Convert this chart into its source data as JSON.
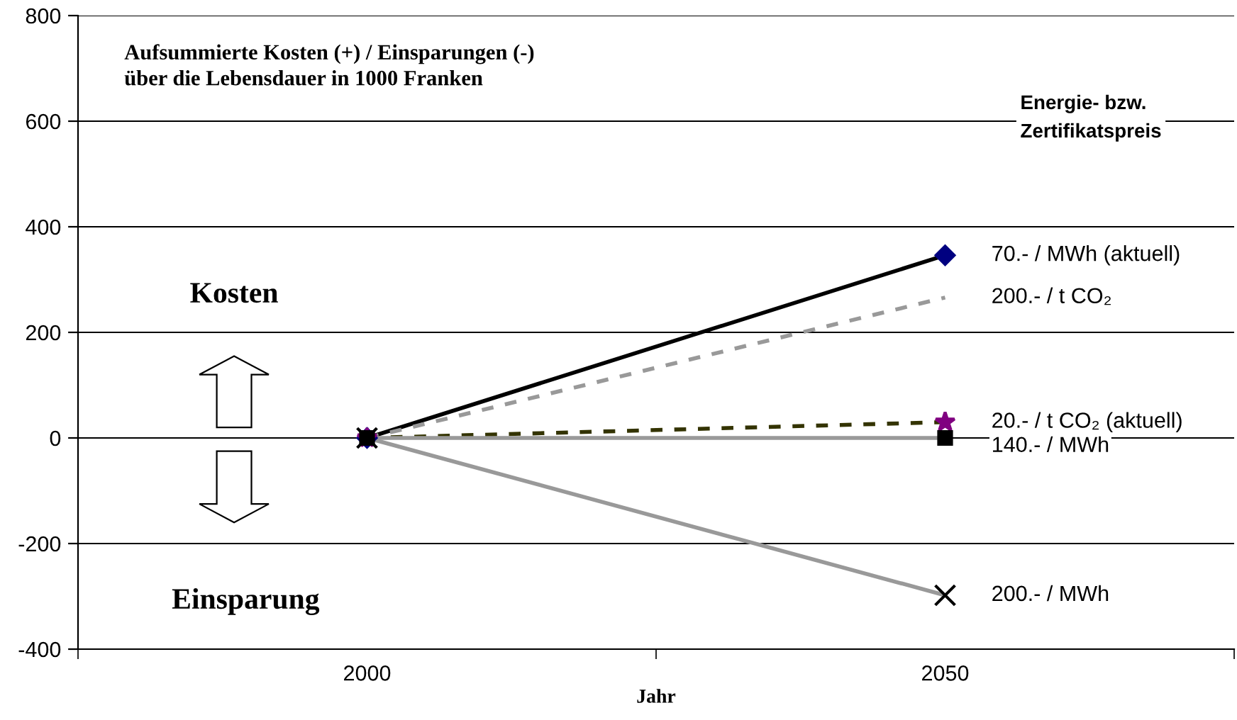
{
  "chart_data": {
    "type": "line",
    "title": "Aufsummierte Kosten (+) / Einsparungen (-)\nüber die Lebensdauer in 1000 Franken",
    "xlabel": "Jahr",
    "categories": [
      "2000",
      "2050"
    ],
    "legend_title": "Energie- bzw.\nZertifikatspreis",
    "series": [
      {
        "name": "70.- / MWh (aktuell)",
        "color": "#000000",
        "colors": [
          "#000080",
          "#000080"
        ],
        "marker": "diamond",
        "line_style": "solid",
        "values": [
          0,
          346
        ]
      },
      {
        "name": "200.- / t CO₂",
        "color": "#999999",
        "marker": "none",
        "line_style": "dashed",
        "values": [
          0,
          266
        ]
      },
      {
        "name": "20.- / t CO₂ (aktuell)",
        "color": "#333300",
        "colors": [
          "#800080",
          "#800080"
        ],
        "marker": "star",
        "line_style": "dashed",
        "values": [
          0,
          30
        ]
      },
      {
        "name": "140.- / MWh",
        "color": "#999999",
        "colors": [
          "#000000",
          "#000000"
        ],
        "marker": "square",
        "line_style": "solid",
        "values": [
          0,
          0
        ]
      },
      {
        "name": "200.- / MWh",
        "color": "#999999",
        "colors": [
          "#000000",
          "#000000"
        ],
        "marker": "cross",
        "line_style": "solid",
        "values": [
          0,
          -298
        ]
      }
    ],
    "ylim": [
      -400,
      800
    ],
    "yticks": [
      -400,
      -200,
      0,
      200,
      400,
      600,
      800
    ],
    "grid": "y",
    "legend": "right",
    "annotations": [
      "Kosten",
      "Einsparung"
    ]
  }
}
